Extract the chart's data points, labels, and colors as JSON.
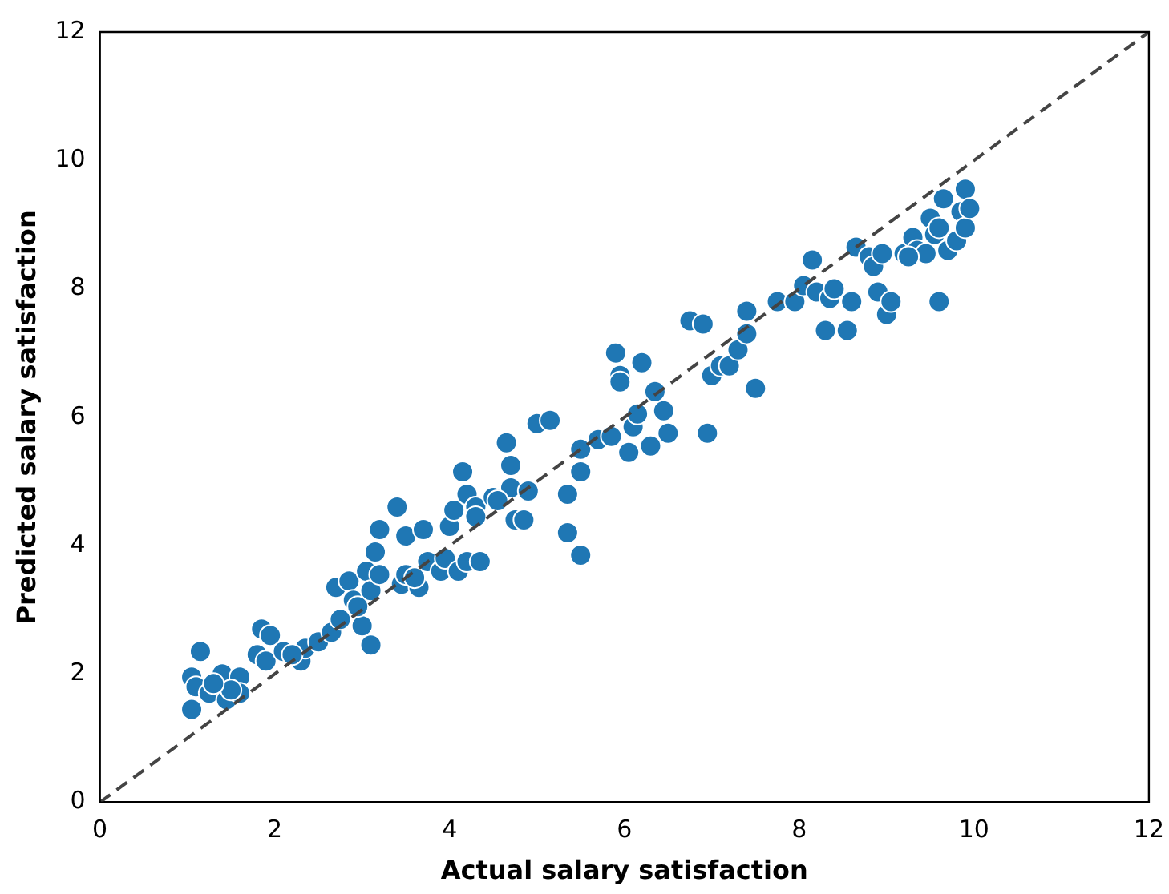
{
  "chart_data": {
    "type": "scatter",
    "xlabel": "Actual salary satisfaction",
    "ylabel": "Predicted salary satisfaction",
    "xlim": [
      0,
      12
    ],
    "ylim": [
      0,
      12
    ],
    "xticks": [
      0,
      2,
      4,
      6,
      8,
      10,
      12
    ],
    "yticks": [
      0,
      2,
      4,
      6,
      8,
      10,
      12
    ],
    "grid": false,
    "legend": false,
    "marker": "circle",
    "series": [
      {
        "color": "#1f77b4",
        "x": [
          1.05,
          1.05,
          1.15,
          1.1,
          1.25,
          1.4,
          1.45,
          1.6,
          1.6,
          1.8,
          1.85,
          1.9,
          1.95,
          2.1,
          2.3,
          2.35,
          2.5,
          2.65,
          2.7,
          2.75,
          2.85,
          2.9,
          3.0,
          3.05,
          3.1,
          3.1,
          3.15,
          3.2,
          3.2,
          3.4,
          3.45,
          3.5,
          3.5,
          3.65,
          3.7,
          3.75,
          3.9,
          3.95,
          4.0,
          4.05,
          4.1,
          4.15,
          4.2,
          4.2,
          4.3,
          4.3,
          4.35,
          4.5,
          4.65,
          4.7,
          4.7,
          4.75,
          4.85,
          4.9,
          5.0,
          5.15,
          5.35,
          5.35,
          5.5,
          5.5,
          5.5,
          5.7,
          5.85,
          5.9,
          5.95,
          5.95,
          6.05,
          6.1,
          6.15,
          6.2,
          6.3,
          6.35,
          6.45,
          6.5,
          6.75,
          6.9,
          6.95,
          7.0,
          7.1,
          7.2,
          7.3,
          7.4,
          7.4,
          7.5,
          7.75,
          7.95,
          8.05,
          8.15,
          8.2,
          8.3,
          8.35,
          8.4,
          8.55,
          8.6,
          8.65,
          8.8,
          8.85,
          8.9,
          9.0,
          9.05,
          9.2,
          9.3,
          9.35,
          9.45,
          9.5,
          9.55,
          9.6,
          9.65,
          9.7,
          9.8,
          9.85,
          9.9,
          9.9,
          9.95,
          9.6,
          9.25,
          8.95,
          4.55,
          2.95,
          3.6,
          1.5,
          1.3,
          2.2
        ],
        "values": [
          1.45,
          1.95,
          2.35,
          1.8,
          1.7,
          2.0,
          1.6,
          1.95,
          1.7,
          2.3,
          2.7,
          2.2,
          2.6,
          2.35,
          2.2,
          2.4,
          2.5,
          2.65,
          3.35,
          2.85,
          3.45,
          3.15,
          2.75,
          3.6,
          2.45,
          3.3,
          3.9,
          3.55,
          4.25,
          4.6,
          3.4,
          4.15,
          3.55,
          3.35,
          4.25,
          3.75,
          3.6,
          3.8,
          4.3,
          4.55,
          3.6,
          5.15,
          3.75,
          4.8,
          4.6,
          4.45,
          3.75,
          4.75,
          5.6,
          5.25,
          4.9,
          4.4,
          4.4,
          4.85,
          5.9,
          5.95,
          4.8,
          4.2,
          5.15,
          3.85,
          5.5,
          5.65,
          5.7,
          7.0,
          6.65,
          6.55,
          5.45,
          5.85,
          6.05,
          6.85,
          5.55,
          6.4,
          6.1,
          5.75,
          7.5,
          7.45,
          5.75,
          6.65,
          6.8,
          6.8,
          7.05,
          7.3,
          7.65,
          6.45,
          7.8,
          7.8,
          8.05,
          8.45,
          7.95,
          7.35,
          7.85,
          8.0,
          7.35,
          7.8,
          8.65,
          8.5,
          8.35,
          7.95,
          7.6,
          7.8,
          8.55,
          8.8,
          8.6,
          8.55,
          9.1,
          8.85,
          7.8,
          9.4,
          8.6,
          8.75,
          9.2,
          9.55,
          8.95,
          9.25,
          8.95,
          8.5,
          8.55,
          4.7,
          3.05,
          3.5,
          1.75,
          1.85,
          2.3
        ]
      },
      {
        "type": "line",
        "color": "#444444",
        "line_style": "dashed",
        "marker": "none",
        "x": [
          0,
          12
        ],
        "values": [
          0,
          12
        ]
      }
    ]
  }
}
